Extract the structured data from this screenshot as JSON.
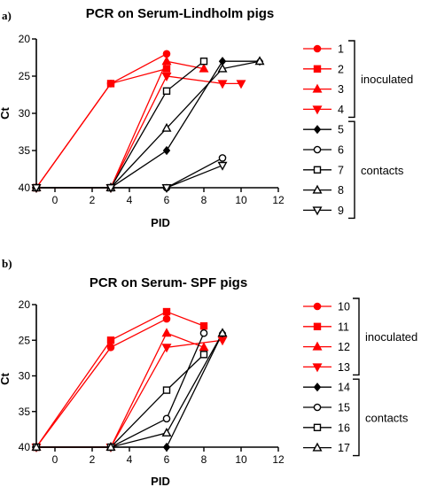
{
  "chart_data": [
    {
      "type": "line",
      "panel_label": "a)",
      "title": "PCR on Serum-Lindholm pigs",
      "xlabel": "PID",
      "ylabel": "Ct",
      "xlim": [
        -1,
        12
      ],
      "ylim": [
        40,
        20
      ],
      "y_inverted": true,
      "xticks": [
        0,
        2,
        4,
        6,
        8,
        10,
        12
      ],
      "yticks": [
        20,
        25,
        30,
        35,
        40
      ],
      "legend_position": "right",
      "groups": [
        {
          "label": "inoculated",
          "series": [
            "1",
            "2",
            "3",
            "4"
          ]
        },
        {
          "label": "contacts",
          "series": [
            "5",
            "6",
            "7",
            "8",
            "9"
          ]
        }
      ],
      "series": [
        {
          "name": "1",
          "color": "#ff0000",
          "marker": "circle-filled",
          "x": [
            -1,
            3,
            6
          ],
          "y": [
            40,
            26,
            22
          ]
        },
        {
          "name": "2",
          "color": "#ff0000",
          "marker": "square-filled",
          "x": [
            -1,
            3,
            6
          ],
          "y": [
            40,
            26,
            24
          ]
        },
        {
          "name": "3",
          "color": "#ff0000",
          "marker": "triangle-up-filled",
          "x": [
            -1,
            3,
            6,
            8
          ],
          "y": [
            40,
            40,
            23,
            24
          ]
        },
        {
          "name": "4",
          "color": "#ff0000",
          "marker": "triangle-down-filled",
          "x": [
            -1,
            3,
            6,
            9,
            10
          ],
          "y": [
            40,
            40,
            25,
            26,
            26
          ]
        },
        {
          "name": "5",
          "color": "#000000",
          "marker": "diamond-filled",
          "x": [
            -1,
            3,
            6,
            9,
            11
          ],
          "y": [
            40,
            40,
            35,
            23,
            23
          ]
        },
        {
          "name": "6",
          "color": "#000000",
          "marker": "circle-open",
          "x": [
            -1,
            3,
            6,
            9
          ],
          "y": [
            40,
            40,
            40,
            36
          ]
        },
        {
          "name": "7",
          "color": "#000000",
          "marker": "square-open",
          "x": [
            -1,
            3,
            6,
            8
          ],
          "y": [
            40,
            40,
            27,
            23
          ]
        },
        {
          "name": "8",
          "color": "#000000",
          "marker": "triangle-up-open",
          "x": [
            -1,
            3,
            6,
            9,
            11
          ],
          "y": [
            40,
            40,
            32,
            24,
            23
          ]
        },
        {
          "name": "9",
          "color": "#000000",
          "marker": "triangle-down-open",
          "x": [
            -1,
            3,
            6,
            9
          ],
          "y": [
            40,
            40,
            40,
            37
          ]
        }
      ]
    },
    {
      "type": "line",
      "panel_label": "b)",
      "title": "PCR on Serum- SPF pigs",
      "xlabel": "PID",
      "ylabel": "Ct",
      "xlim": [
        -1,
        12
      ],
      "ylim": [
        40,
        20
      ],
      "y_inverted": true,
      "xticks": [
        0,
        2,
        4,
        6,
        8,
        10,
        12
      ],
      "yticks": [
        20,
        25,
        30,
        35,
        40
      ],
      "legend_position": "right",
      "groups": [
        {
          "label": "inoculated",
          "series": [
            "10",
            "11",
            "12",
            "13"
          ]
        },
        {
          "label": "contacts",
          "series": [
            "14",
            "15",
            "16",
            "17"
          ]
        }
      ],
      "series": [
        {
          "name": "10",
          "color": "#ff0000",
          "marker": "circle-filled",
          "x": [
            -1,
            3,
            6
          ],
          "y": [
            40,
            26,
            22
          ]
        },
        {
          "name": "11",
          "color": "#ff0000",
          "marker": "square-filled",
          "x": [
            -1,
            3,
            6,
            8
          ],
          "y": [
            40,
            25,
            21,
            23
          ]
        },
        {
          "name": "12",
          "color": "#ff0000",
          "marker": "triangle-up-filled",
          "x": [
            -1,
            3,
            6,
            8
          ],
          "y": [
            40,
            40,
            24,
            26
          ]
        },
        {
          "name": "13",
          "color": "#ff0000",
          "marker": "triangle-down-filled",
          "x": [
            -1,
            3,
            6,
            9
          ],
          "y": [
            40,
            40,
            26,
            25
          ]
        },
        {
          "name": "14",
          "color": "#000000",
          "marker": "diamond-filled",
          "x": [
            -1,
            3,
            6,
            9
          ],
          "y": [
            40,
            40,
            40,
            24
          ]
        },
        {
          "name": "15",
          "color": "#000000",
          "marker": "circle-open",
          "x": [
            -1,
            3,
            6,
            8
          ],
          "y": [
            40,
            40,
            36,
            24
          ]
        },
        {
          "name": "16",
          "color": "#000000",
          "marker": "square-open",
          "x": [
            -1,
            3,
            6,
            8
          ],
          "y": [
            40,
            40,
            32,
            27
          ]
        },
        {
          "name": "17",
          "color": "#000000",
          "marker": "triangle-up-open",
          "x": [
            -1,
            3,
            6,
            9
          ],
          "y": [
            40,
            40,
            38,
            24
          ]
        }
      ]
    }
  ]
}
